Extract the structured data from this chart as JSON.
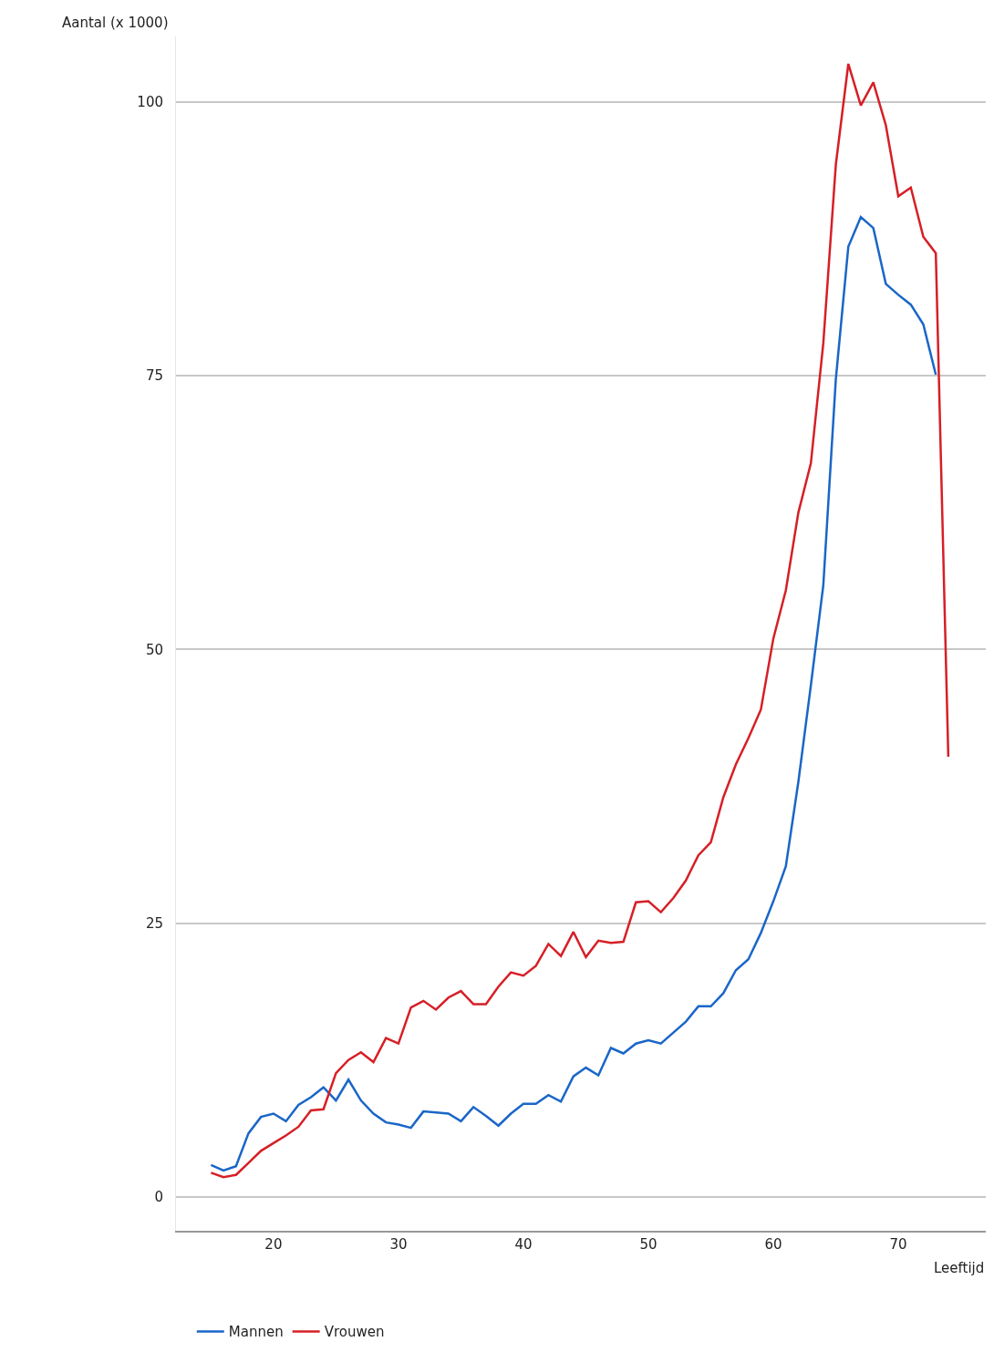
{
  "chart_data": {
    "type": "line",
    "xlabel": "Leeftijd",
    "ylabel": "Aantal (x 1000)",
    "x": [
      15,
      16,
      17,
      18,
      19,
      20,
      21,
      22,
      23,
      24,
      25,
      26,
      27,
      28,
      29,
      30,
      31,
      32,
      33,
      34,
      35,
      36,
      37,
      38,
      39,
      40,
      41,
      42,
      43,
      44,
      45,
      46,
      47,
      48,
      49,
      50,
      51,
      52,
      53,
      54,
      55,
      56,
      57,
      58,
      59,
      60,
      61,
      62,
      63,
      64,
      65,
      66,
      67,
      68,
      69,
      70,
      71,
      72,
      73,
      74
    ],
    "series": [
      {
        "name": "Mannen",
        "color": "#1a66c8",
        "values": [
          2.9,
          2.4,
          2.8,
          5.8,
          7.3,
          7.6,
          6.9,
          8.4,
          9.1,
          10.0,
          8.8,
          10.7,
          8.8,
          7.6,
          6.8,
          6.6,
          6.3,
          7.8,
          7.7,
          7.6,
          6.9,
          8.2,
          7.4,
          6.5,
          7.6,
          8.5,
          8.5,
          9.3,
          8.7,
          11.0,
          11.8,
          11.1,
          13.6,
          13.1,
          14.0,
          14.3,
          14.0,
          15.0,
          16.0,
          17.4,
          17.4,
          18.6,
          20.7,
          21.7,
          24.1,
          27.0,
          30.2,
          37.9,
          46.7,
          55.9,
          74.7,
          86.8,
          89.5,
          88.5,
          83.4,
          82.4,
          81.5,
          79.7,
          75.1,
          null
        ]
      },
      {
        "name": "Vrouwen",
        "color": "#d61f26",
        "values": [
          2.2,
          1.8,
          2.0,
          3.1,
          4.2,
          4.9,
          5.6,
          6.4,
          7.9,
          8.0,
          11.3,
          12.5,
          13.2,
          12.3,
          14.5,
          14.0,
          17.3,
          17.9,
          17.1,
          18.2,
          18.8,
          17.6,
          17.6,
          19.2,
          20.5,
          20.2,
          21.1,
          23.1,
          22.0,
          24.2,
          21.9,
          23.4,
          23.2,
          23.3,
          26.9,
          27.0,
          26.0,
          27.3,
          28.9,
          31.2,
          32.4,
          36.5,
          39.5,
          41.9,
          44.5,
          51.0,
          55.4,
          62.5,
          67.0,
          78.0,
          94.3,
          103.5,
          99.7,
          101.8,
          97.9,
          91.4,
          92.2,
          87.7,
          86.2,
          40.2
        ]
      }
    ],
    "xlim": [
      12.2,
      77
    ],
    "xticks": [
      20,
      30,
      40,
      50,
      60,
      70
    ],
    "ylim": [
      -3.1,
      106
    ],
    "yticks": [
      0,
      25,
      50,
      75,
      100
    ],
    "grid": "y",
    "legend": "bottom left",
    "marker": "none",
    "line_style": "solid"
  }
}
